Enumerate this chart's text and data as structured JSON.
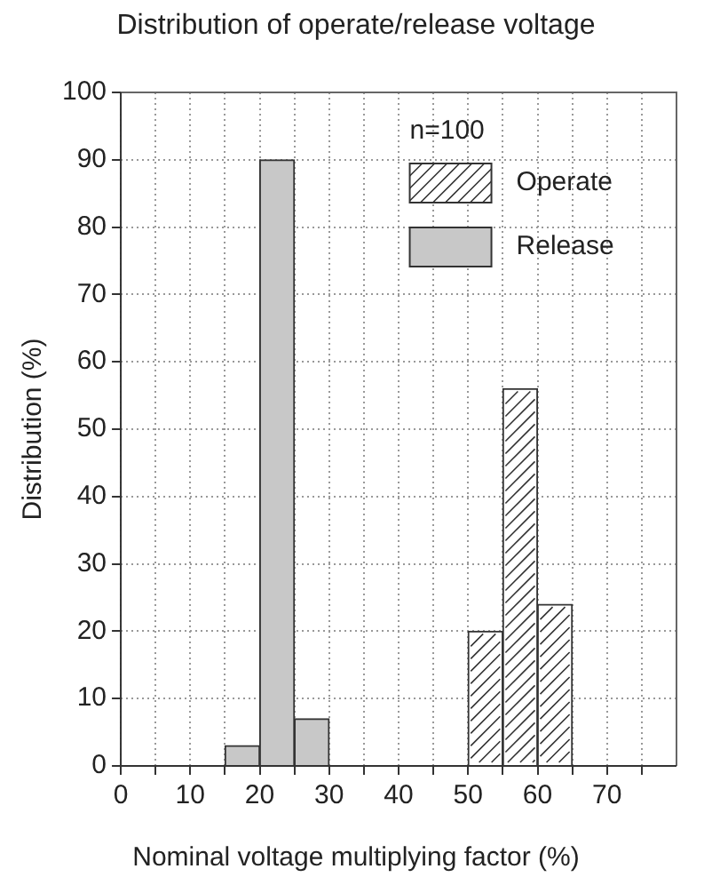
{
  "chart_data": {
    "type": "histogram",
    "title": "Distribution of operate/release voltage",
    "xlabel": "Nominal voltage multiplying factor (%)",
    "ylabel": "Distribution (%)",
    "annotations": [
      "n=100"
    ],
    "bins": [
      15,
      20,
      25,
      30,
      35,
      40,
      45,
      50,
      55,
      60,
      65
    ],
    "series": [
      {
        "name": "Operate",
        "color": "#ffffff",
        "values": [
          null,
          null,
          null,
          null,
          null,
          null,
          null,
          20,
          56,
          24
        ]
      },
      {
        "name": "Release",
        "color": "#c8c8c8",
        "values": [
          3,
          90,
          7,
          null,
          null,
          null,
          null,
          null,
          null,
          null
        ]
      }
    ],
    "xlim": [
      0,
      80
    ],
    "xticks": [
      0,
      {
        "value": 5,
        "label": null
      },
      10,
      {
        "value": 15,
        "label": null
      },
      20,
      {
        "value": 25,
        "label": null
      },
      30,
      {
        "value": 35,
        "label": null
      },
      40,
      {
        "value": 45,
        "label": null
      },
      50,
      {
        "value": 55,
        "label": null
      },
      60,
      {
        "value": 65,
        "label": null
      },
      70,
      {
        "value": 75,
        "label": null
      }
    ],
    "ylim": [
      0,
      100
    ],
    "yticks": [
      0,
      10,
      20,
      30,
      40,
      50,
      60,
      70,
      80,
      90,
      100
    ],
    "grid": true,
    "legend": "top right"
  }
}
